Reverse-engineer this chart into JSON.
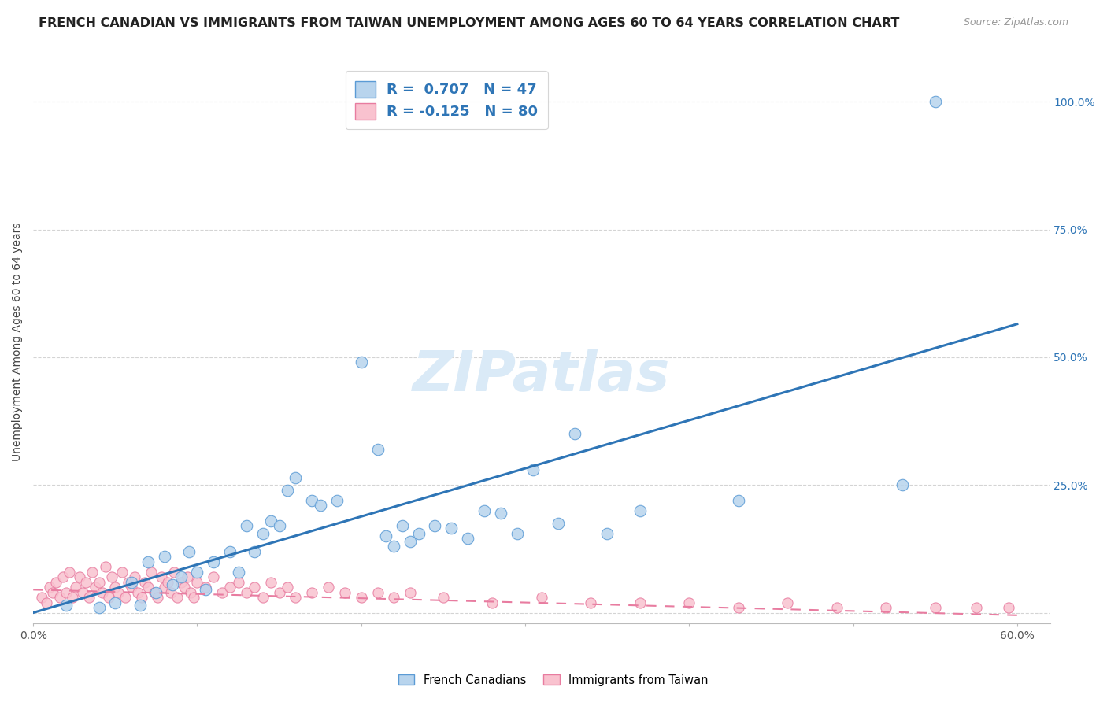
{
  "title": "FRENCH CANADIAN VS IMMIGRANTS FROM TAIWAN UNEMPLOYMENT AMONG AGES 60 TO 64 YEARS CORRELATION CHART",
  "source": "Source: ZipAtlas.com",
  "ylabel": "Unemployment Among Ages 60 to 64 years",
  "xlim": [
    0.0,
    0.62
  ],
  "ylim": [
    -0.02,
    1.08
  ],
  "xticks": [
    0.0,
    0.1,
    0.2,
    0.3,
    0.4,
    0.5,
    0.6
  ],
  "xticklabels_show": [
    "0.0%",
    "60.0%"
  ],
  "xticklabels_show_vals": [
    0.0,
    0.6
  ],
  "yticks": [
    0.0,
    0.25,
    0.5,
    0.75,
    1.0
  ],
  "yticklabels_right": [
    "",
    "25.0%",
    "50.0%",
    "75.0%",
    "100.0%"
  ],
  "legend1_label": "R =  0.707   N = 47",
  "legend2_label": "R = -0.125   N = 80",
  "legend1_facecolor": "#b8d4ed",
  "legend2_facecolor": "#f9c2cf",
  "blue_marker_face": "#b8d4ed",
  "blue_marker_edge": "#5b9bd5",
  "pink_marker_face": "#f9c2cf",
  "pink_marker_edge": "#e87ca0",
  "trendline_blue_color": "#2e75b6",
  "trendline_pink_color": "#e87ca0",
  "watermark": "ZIPatlas",
  "watermark_color": "#daeaf7",
  "blue_scatter_x": [
    0.02,
    0.04,
    0.05,
    0.06,
    0.065,
    0.07,
    0.075,
    0.08,
    0.085,
    0.09,
    0.095,
    0.1,
    0.105,
    0.11,
    0.12,
    0.125,
    0.13,
    0.135,
    0.14,
    0.145,
    0.15,
    0.155,
    0.16,
    0.17,
    0.175,
    0.185,
    0.2,
    0.21,
    0.215,
    0.22,
    0.225,
    0.23,
    0.235,
    0.245,
    0.255,
    0.265,
    0.275,
    0.285,
    0.295,
    0.305,
    0.32,
    0.33,
    0.35,
    0.37,
    0.43,
    0.53,
    0.55
  ],
  "blue_scatter_y": [
    0.015,
    0.01,
    0.02,
    0.06,
    0.015,
    0.1,
    0.04,
    0.11,
    0.055,
    0.07,
    0.12,
    0.08,
    0.045,
    0.1,
    0.12,
    0.08,
    0.17,
    0.12,
    0.155,
    0.18,
    0.17,
    0.24,
    0.265,
    0.22,
    0.21,
    0.22,
    0.49,
    0.32,
    0.15,
    0.13,
    0.17,
    0.14,
    0.155,
    0.17,
    0.165,
    0.145,
    0.2,
    0.195,
    0.155,
    0.28,
    0.175,
    0.35,
    0.155,
    0.2,
    0.22,
    0.25,
    1.0
  ],
  "pink_scatter_x": [
    0.005,
    0.008,
    0.01,
    0.012,
    0.014,
    0.016,
    0.018,
    0.02,
    0.022,
    0.024,
    0.026,
    0.028,
    0.03,
    0.032,
    0.034,
    0.036,
    0.038,
    0.04,
    0.042,
    0.044,
    0.046,
    0.048,
    0.05,
    0.052,
    0.054,
    0.056,
    0.058,
    0.06,
    0.062,
    0.064,
    0.066,
    0.068,
    0.07,
    0.072,
    0.074,
    0.076,
    0.078,
    0.08,
    0.082,
    0.084,
    0.086,
    0.088,
    0.09,
    0.092,
    0.094,
    0.096,
    0.098,
    0.1,
    0.105,
    0.11,
    0.115,
    0.12,
    0.125,
    0.13,
    0.135,
    0.14,
    0.145,
    0.15,
    0.155,
    0.16,
    0.17,
    0.18,
    0.19,
    0.2,
    0.21,
    0.22,
    0.23,
    0.25,
    0.28,
    0.31,
    0.34,
    0.37,
    0.4,
    0.43,
    0.46,
    0.49,
    0.52,
    0.55,
    0.575,
    0.595
  ],
  "pink_scatter_y": [
    0.03,
    0.02,
    0.05,
    0.04,
    0.06,
    0.03,
    0.07,
    0.04,
    0.08,
    0.03,
    0.05,
    0.07,
    0.04,
    0.06,
    0.03,
    0.08,
    0.05,
    0.06,
    0.04,
    0.09,
    0.03,
    0.07,
    0.05,
    0.04,
    0.08,
    0.03,
    0.06,
    0.05,
    0.07,
    0.04,
    0.03,
    0.06,
    0.05,
    0.08,
    0.04,
    0.03,
    0.07,
    0.05,
    0.06,
    0.04,
    0.08,
    0.03,
    0.06,
    0.05,
    0.07,
    0.04,
    0.03,
    0.06,
    0.05,
    0.07,
    0.04,
    0.05,
    0.06,
    0.04,
    0.05,
    0.03,
    0.06,
    0.04,
    0.05,
    0.03,
    0.04,
    0.05,
    0.04,
    0.03,
    0.04,
    0.03,
    0.04,
    0.03,
    0.02,
    0.03,
    0.02,
    0.02,
    0.02,
    0.01,
    0.02,
    0.01,
    0.01,
    0.01,
    0.01,
    0.01
  ],
  "blue_trendline_x": [
    0.0,
    0.6
  ],
  "blue_trendline_y": [
    0.0,
    0.565
  ],
  "pink_trendline_x": [
    0.0,
    0.6
  ],
  "pink_trendline_y": [
    0.045,
    -0.005
  ],
  "background_color": "#ffffff",
  "grid_color": "#d0d0d0",
  "title_fontsize": 11.5,
  "axis_label_fontsize": 10,
  "tick_fontsize": 10,
  "watermark_fontsize": 52,
  "source_fontsize": 9,
  "legend_fontsize": 13
}
